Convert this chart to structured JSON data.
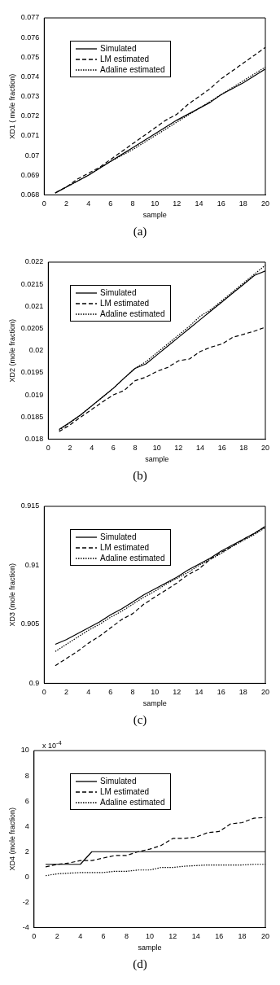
{
  "chart_data": [
    {
      "type": "line",
      "xlabel": "sample",
      "ylabel": "XD1 ( mole fraction)",
      "annotations": [
        "(a)"
      ],
      "x": [
        1,
        2,
        3,
        4,
        5,
        6,
        7,
        8,
        9,
        10,
        11,
        12,
        13,
        14,
        15,
        16,
        17,
        18,
        19,
        20
      ],
      "xlim": [
        0,
        20
      ],
      "xticks": [
        0,
        2,
        4,
        6,
        8,
        10,
        12,
        14,
        16,
        18,
        20
      ],
      "ylim": [
        0.068,
        0.077
      ],
      "yticks": [
        0.068,
        0.069,
        0.07,
        0.071,
        0.072,
        0.073,
        0.074,
        0.075,
        0.076,
        0.077
      ],
      "grid": false,
      "legend": "top left",
      "marker": "none",
      "series": [
        {
          "name": "Simulated",
          "color": "#000000",
          "line_style": "solid",
          "values": [
            0.0681,
            0.0684,
            0.0687,
            0.069,
            0.06935,
            0.0697,
            0.07005,
            0.0704,
            0.07075,
            0.0711,
            0.07145,
            0.0718,
            0.0721,
            0.0724,
            0.0727,
            0.0731,
            0.0734,
            0.0737,
            0.07405,
            0.0744
          ]
        },
        {
          "name": "LM estimated",
          "color": "#000000",
          "line_style": "dashed",
          "values": [
            0.0681,
            0.0684,
            0.0688,
            0.0691,
            0.0694,
            0.0698,
            0.0702,
            0.0706,
            0.071,
            0.0714,
            0.0718,
            0.0721,
            0.0726,
            0.073,
            0.0734,
            0.0739,
            0.0743,
            0.0747,
            0.0751,
            0.0755
          ]
        },
        {
          "name": "Adaline estimated",
          "color": "#000000",
          "line_style": "dotted",
          "values": [
            0.0681,
            0.0684,
            0.0687,
            0.069,
            0.06935,
            0.0697,
            0.07,
            0.0703,
            0.07065,
            0.071,
            0.07135,
            0.0717,
            0.07205,
            0.0724,
            0.07275,
            0.0731,
            0.07345,
            0.0738,
            0.07415,
            0.0745
          ]
        }
      ]
    },
    {
      "type": "line",
      "xlabel": "sample",
      "ylabel": "XD2 (mole fraction)",
      "annotations": [
        "(b)"
      ],
      "x": [
        1,
        2,
        3,
        4,
        5,
        6,
        7,
        8,
        9,
        10,
        11,
        12,
        13,
        14,
        15,
        16,
        17,
        18,
        19,
        20
      ],
      "xlim": [
        0,
        20
      ],
      "xticks": [
        0,
        2,
        4,
        6,
        8,
        10,
        12,
        14,
        16,
        18,
        20
      ],
      "ylim": [
        0.018,
        0.022
      ],
      "yticks": [
        0.018,
        0.0185,
        0.019,
        0.0195,
        0.02,
        0.0205,
        0.021,
        0.0215,
        0.022
      ],
      "grid": false,
      "legend": "top left",
      "marker": "none",
      "series": [
        {
          "name": "Simulated",
          "color": "#000000",
          "line_style": "solid",
          "values": [
            0.01822,
            0.01838,
            0.01855,
            0.01875,
            0.01895,
            0.01915,
            0.01938,
            0.0196,
            0.0197,
            0.0199,
            0.0201,
            0.0203,
            0.0205,
            0.0207,
            0.0209,
            0.0211,
            0.0213,
            0.0215,
            0.0217,
            0.0218
          ]
        },
        {
          "name": "LM estimated",
          "color": "#000000",
          "line_style": "dashed",
          "values": [
            0.01817,
            0.01832,
            0.0185,
            0.01867,
            0.01884,
            0.019,
            0.0191,
            0.01932,
            0.0194,
            0.01953,
            0.01962,
            0.01977,
            0.01981,
            0.01998,
            0.02008,
            0.02015,
            0.0203,
            0.02037,
            0.02044,
            0.02053
          ]
        },
        {
          "name": "Adaline estimated",
          "color": "#000000",
          "line_style": "dotted",
          "values": [
            0.0182,
            0.01837,
            0.01855,
            0.01875,
            0.01895,
            0.01915,
            0.01938,
            0.0196,
            0.01975,
            0.01995,
            0.02015,
            0.02035,
            0.02055,
            0.02078,
            0.02093,
            0.02113,
            0.02133,
            0.02153,
            0.02173,
            0.02193
          ]
        }
      ]
    },
    {
      "type": "line",
      "xlabel": "sample",
      "ylabel": "XD3 (mole fraction)",
      "annotations": [
        "(c)"
      ],
      "x": [
        1,
        2,
        3,
        4,
        5,
        6,
        7,
        8,
        9,
        10,
        11,
        12,
        13,
        14,
        15,
        16,
        17,
        18,
        19,
        20
      ],
      "xlim": [
        0,
        20
      ],
      "xticks": [
        0,
        2,
        4,
        6,
        8,
        10,
        12,
        14,
        16,
        18,
        20
      ],
      "ylim": [
        0.9,
        0.915
      ],
      "yticks": [
        0.9,
        0.905,
        0.91,
        0.915
      ],
      "grid": false,
      "legend": "top left",
      "marker": "none",
      "series": [
        {
          "name": "Simulated",
          "color": "#000000",
          "line_style": "solid",
          "values": [
            0.9033,
            0.9037,
            0.9042,
            0.9047,
            0.9052,
            0.9058,
            0.9063,
            0.9069,
            0.9075,
            0.908,
            0.9085,
            0.909,
            0.9096,
            0.9101,
            0.9106,
            0.9112,
            0.9117,
            0.9122,
            0.9127,
            0.9133
          ]
        },
        {
          "name": "LM estimated",
          "color": "#000000",
          "line_style": "dashed",
          "values": [
            0.9015,
            0.9021,
            0.9027,
            0.9034,
            0.904,
            0.9047,
            0.9054,
            0.9059,
            0.9067,
            0.9073,
            0.9079,
            0.9085,
            0.9092,
            0.9097,
            0.9105,
            0.9111,
            0.9116,
            0.9122,
            0.9127,
            0.9133
          ]
        },
        {
          "name": "Adaline estimated",
          "color": "#000000",
          "line_style": "dotted",
          "values": [
            0.9027,
            0.9033,
            0.9039,
            0.9045,
            0.905,
            0.9056,
            0.9061,
            0.9067,
            0.9073,
            0.9078,
            0.9084,
            0.9089,
            0.9094,
            0.91,
            0.9105,
            0.911,
            0.9116,
            0.9121,
            0.9126,
            0.9132
          ]
        }
      ]
    },
    {
      "type": "line",
      "xlabel": "sample",
      "ylabel": "XD4 (mole fraction)",
      "annotations": [
        "x 10$^{-4}$",
        "(d)"
      ],
      "x": [
        1,
        2,
        3,
        4,
        5,
        6,
        7,
        8,
        9,
        10,
        11,
        12,
        13,
        14,
        15,
        16,
        17,
        18,
        19,
        20
      ],
      "xlim": [
        0,
        20
      ],
      "xticks": [
        0,
        2,
        4,
        6,
        8,
        10,
        12,
        14,
        16,
        18,
        20
      ],
      "ylim": [
        -4,
        10
      ],
      "yticks": [
        -4,
        -2,
        0,
        2,
        4,
        6,
        8,
        10
      ],
      "grid": false,
      "legend": "top left",
      "marker": "none",
      "series": [
        {
          "name": "Simulated",
          "color": "#000000",
          "line_style": "solid",
          "values": [
            1,
            1,
            1,
            1,
            2,
            2,
            2,
            2,
            2,
            2,
            2,
            2,
            2,
            2,
            2,
            2,
            2,
            2,
            2,
            2
          ]
        },
        {
          "name": "LM estimated",
          "color": "#000000",
          "line_style": "dashed",
          "values": [
            0.8,
            1,
            1.1,
            1.3,
            1.3,
            1.5,
            1.7,
            1.7,
            2,
            2.2,
            2.5,
            3.05,
            3.05,
            3.15,
            3.5,
            3.6,
            4.2,
            4.3,
            4.65,
            4.7
          ]
        },
        {
          "name": "Adaline estimated",
          "color": "#000000",
          "line_style": "dotted",
          "values": [
            0.1,
            0.25,
            0.3,
            0.35,
            0.35,
            0.35,
            0.45,
            0.45,
            0.55,
            0.55,
            0.75,
            0.75,
            0.85,
            0.9,
            0.95,
            0.95,
            0.95,
            0.95,
            1,
            1
          ]
        }
      ]
    }
  ]
}
